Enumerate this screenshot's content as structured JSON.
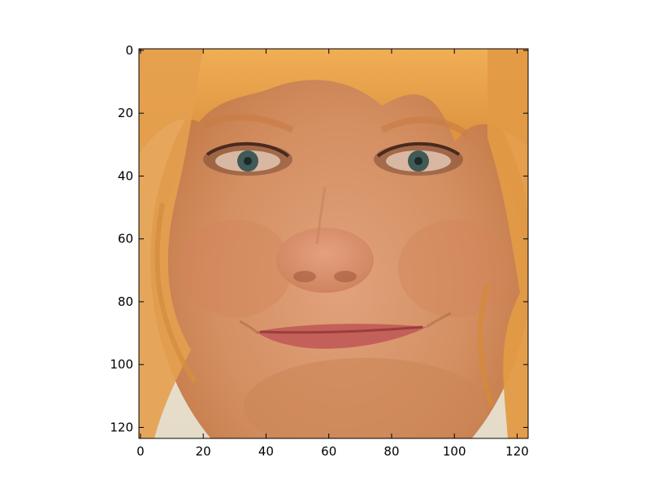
{
  "image": {
    "subject": "face-portrait-photo",
    "dominant_colors": {
      "hair": "#e7a24e",
      "skin": "#d9966a",
      "lips": "#c4605a",
      "eyes": "#3f5a57",
      "background": "#e8e2d6"
    }
  },
  "axes": {
    "xlim": [
      -0.5,
      123.5
    ],
    "ylim": [
      123.5,
      -0.5
    ],
    "x_ticks": [
      0,
      20,
      40,
      60,
      80,
      100,
      120
    ],
    "y_ticks": [
      0,
      20,
      40,
      60,
      80,
      100,
      120
    ],
    "x_tick_labels": [
      "0",
      "20",
      "40",
      "60",
      "80",
      "100",
      "120"
    ],
    "y_tick_labels": [
      "0",
      "20",
      "40",
      "60",
      "80",
      "100",
      "120"
    ],
    "frame_color": "#000000"
  }
}
